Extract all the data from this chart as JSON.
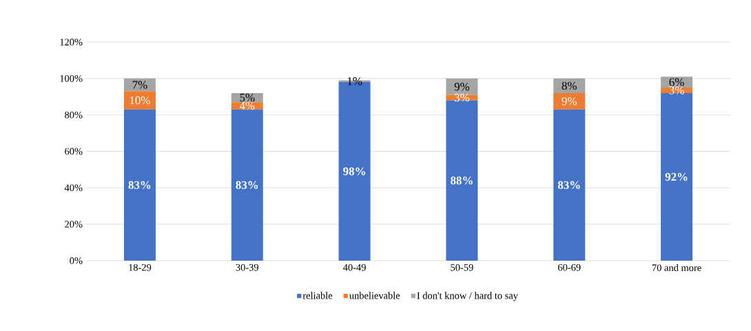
{
  "chart_data": {
    "type": "bar",
    "stacked": true,
    "categories": [
      "18-29",
      "30-39",
      "40-49",
      "50-59",
      "60-69",
      "70 and more"
    ],
    "series": [
      {
        "name": "reliable",
        "color": "#4472c4",
        "values": [
          83,
          83,
          98,
          88,
          83,
          92
        ],
        "value_labels": [
          "83%",
          "83%",
          "98%",
          "88%",
          "83%",
          "92%"
        ]
      },
      {
        "name": "unbelievable",
        "color": "#ed7d31",
        "values": [
          10,
          4,
          0,
          3,
          9,
          3
        ],
        "value_labels": [
          "10%",
          "4%",
          null,
          "3%",
          "9%",
          "3%"
        ]
      },
      {
        "name": "I don't know / hard to say",
        "color": "#a5a5a5",
        "values": [
          7,
          5,
          1,
          9,
          8,
          6
        ],
        "value_labels": [
          "7%",
          "5%",
          "1%",
          "9%",
          "8%",
          "6%"
        ]
      }
    ],
    "ylim": [
      0,
      120
    ],
    "yticks": [
      {
        "value": 0,
        "label": "0%"
      },
      {
        "value": 20,
        "label": "20%"
      },
      {
        "value": 40,
        "label": "40%"
      },
      {
        "value": 60,
        "label": "60%"
      },
      {
        "value": 80,
        "label": "80%"
      },
      {
        "value": 100,
        "label": "100%"
      },
      {
        "value": 120,
        "label": "120%"
      }
    ],
    "grid": "y",
    "legend": "bottom"
  }
}
